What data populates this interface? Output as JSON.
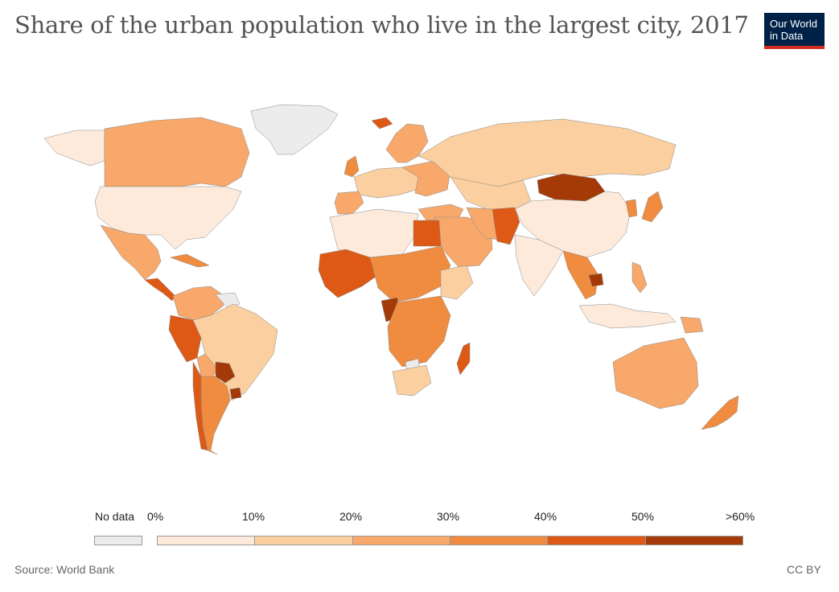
{
  "title": "Share of the urban population who live in the largest city, 2017",
  "logo": {
    "line1": "Our World",
    "line2": "in Data"
  },
  "colors": {
    "nodata": "#ececec",
    "bin0": "#fdeadb",
    "bin1": "#fbcf9f",
    "bin2": "#f7a86a",
    "bin3": "#f08c3f",
    "bin4": "#dd5915",
    "bin5": "#a33a08",
    "border": "#888888"
  },
  "legend": {
    "nodata_label": "No data",
    "ticks": [
      "0%",
      "10%",
      "20%",
      "30%",
      "40%",
      "50%",
      ">60%"
    ],
    "bins": [
      "bin0",
      "bin1",
      "bin2",
      "bin3",
      "bin4",
      "bin5"
    ]
  },
  "source": "Source: World Bank",
  "license": "CC BY"
}
